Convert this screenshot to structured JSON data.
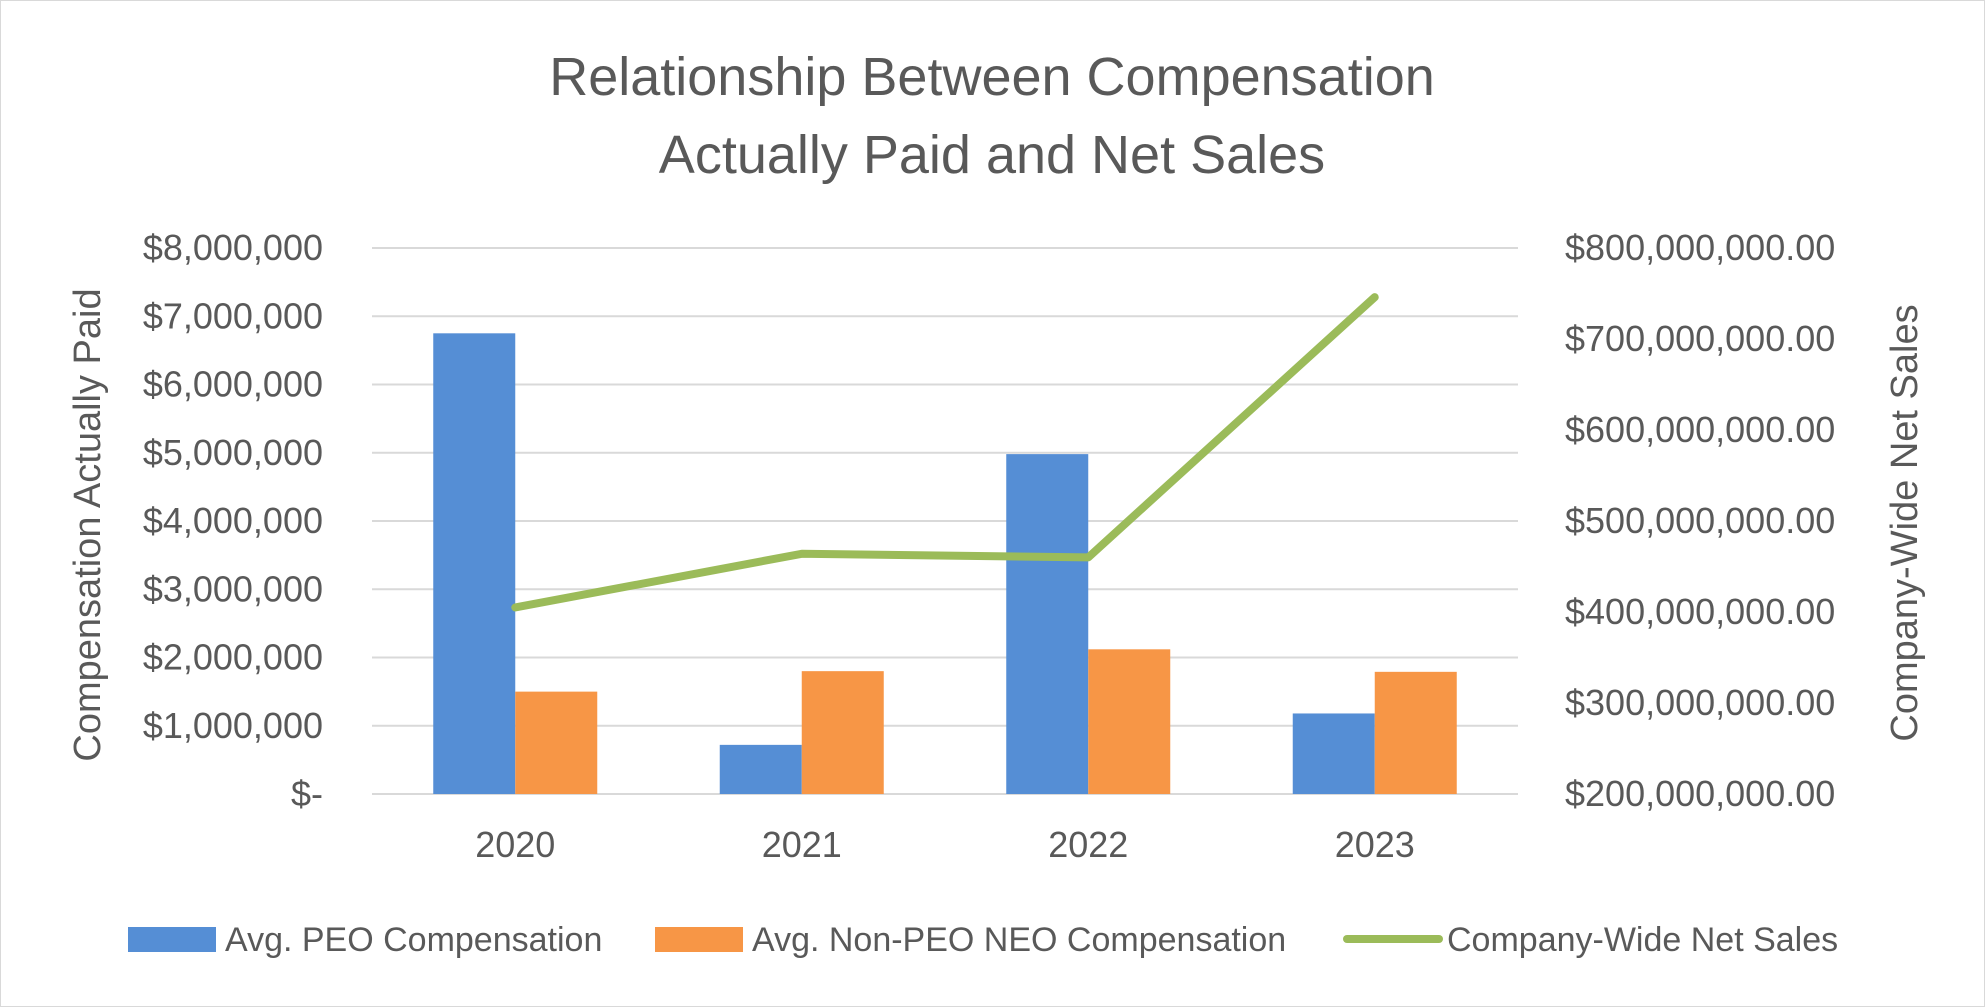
{
  "chart_data": {
    "type": "bar",
    "title_lines": [
      "Relationship Between Compensation",
      "Actually Paid and Net Sales"
    ],
    "categories": [
      "2020",
      "2021",
      "2022",
      "2023"
    ],
    "series": [
      {
        "name": "Avg. PEO Compensation",
        "type": "bar",
        "axis": "left",
        "color": "#558ed5",
        "values": [
          6750000,
          720000,
          4980000,
          1180000
        ]
      },
      {
        "name": "Avg. Non-PEO NEO Compensation",
        "type": "bar",
        "axis": "left",
        "color": "#f79646",
        "values": [
          1500000,
          1800000,
          2120000,
          1790000
        ]
      },
      {
        "name": "Company-Wide Net Sales",
        "type": "line",
        "axis": "right",
        "color": "#9bbb59",
        "values": [
          405000000,
          464000000,
          460000000,
          746000000
        ]
      }
    ],
    "y_left": {
      "label": "Compensation Actually Paid",
      "ylim": [
        0,
        8000000
      ],
      "ticks": [
        0,
        1000000,
        2000000,
        3000000,
        4000000,
        5000000,
        6000000,
        7000000,
        8000000
      ],
      "tick_labels": [
        "$-",
        "$1,000,000",
        "$2,000,000",
        "$3,000,000",
        "$4,000,000",
        "$5,000,000",
        "$6,000,000",
        "$7,000,000",
        "$8,000,000"
      ]
    },
    "y_right": {
      "label": "Company-Wide Net Sales",
      "ylim": [
        200000000,
        800000000
      ],
      "ticks": [
        200000000,
        300000000,
        400000000,
        500000000,
        600000000,
        700000000,
        800000000
      ],
      "tick_labels": [
        "$200,000,000.00",
        "$300,000,000.00",
        "$400,000,000.00",
        "$500,000,000.00",
        "$600,000,000.00",
        "$700,000,000.00",
        "$800,000,000.00"
      ]
    },
    "grid": true,
    "legend_position": "bottom"
  }
}
